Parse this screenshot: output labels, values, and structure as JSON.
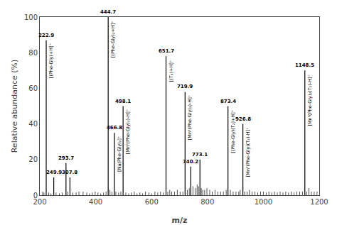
{
  "chart_data": {
    "type": "spectrum",
    "xlabel": "m/z",
    "ylabel": "Relative abundance (%)",
    "xlim": [
      200,
      1200
    ],
    "ylim": [
      0,
      100
    ],
    "xticks": [
      200,
      400,
      600,
      800,
      1000,
      1200
    ],
    "yticks": [
      0,
      20,
      40,
      60,
      80,
      100
    ],
    "grid": false,
    "color": "#000000",
    "series": [
      {
        "x": [
          222.9,
          249.9,
          293.7,
          307.8,
          444.7,
          466.8,
          498.1,
          651.7,
          719.9,
          740.2,
          773.1,
          873.4,
          926.8,
          1148.5
        ],
        "values": [
          87,
          10,
          18,
          10,
          100,
          35,
          50,
          78,
          58,
          16,
          20,
          50,
          40,
          70
        ],
        "labels": [
          "222.9",
          "249.9",
          "293.7",
          "307.8",
          "444.7",
          "466.8",
          "498.1",
          "651.7",
          "719.9",
          "740.2",
          "773.1",
          "873.4",
          "926.8",
          "1148.5"
        ],
        "annotations": [
          "[(Phe-Gly)+H]⁺",
          null,
          null,
          null,
          "[(Phe-Gly)₂+H]⁺",
          "[Na(Phe-Gly)₂]⁺",
          "[Mnᴵᴵ(Phe-Gly)₂)-H]⁺",
          "[(T₃)+H]⁺",
          "[Mnᴵᴵ(Phe-Gly)₃)-H]⁺",
          null,
          null,
          "[(Phe-Gly)(T₂)+H]⁺",
          "[Mnᴵᴵ(Phe-Gly)(T₂)-H]⁺",
          "[Mnᴵᴵ(Phe-Gly)₂(T₂)-H]⁺"
        ]
      },
      {
        "x": [
          210,
          215,
          232,
          240,
          258,
          270,
          280,
          300,
          318,
          330,
          340,
          355,
          368,
          378,
          388,
          398,
          408,
          418,
          428,
          437,
          451,
          458,
          472,
          482,
          490,
          508,
          518,
          528,
          538,
          548,
          558,
          568,
          578,
          590,
          600,
          612,
          622,
          632,
          642,
          658,
          665,
          672,
          682,
          692,
          702,
          712,
          728,
          735,
          748,
          757,
          763,
          768,
          778,
          783,
          790,
          798,
          808,
          817,
          827,
          837,
          847,
          857,
          867,
          882,
          892,
          902,
          912,
          917,
          933,
          942,
          950,
          960,
          970,
          980,
          990,
          1000,
          1010,
          1020,
          1030,
          1040,
          1050,
          1060,
          1070,
          1080,
          1090,
          1100,
          1110,
          1120,
          1130,
          1140,
          1155,
          1163,
          1172,
          1182,
          1192
        ],
        "values": [
          2,
          1.5,
          1.5,
          1,
          1.5,
          1,
          1.5,
          2,
          1.5,
          1.5,
          2,
          2,
          1.5,
          1,
          1.5,
          2,
          1.5,
          1,
          1.5,
          2,
          3,
          2,
          2,
          1.5,
          2,
          1.5,
          1,
          1.5,
          2,
          1,
          1.5,
          1,
          2,
          1.5,
          1,
          2,
          1.5,
          2,
          1.5,
          2,
          3,
          2,
          2,
          3,
          2,
          2,
          3,
          4,
          5,
          4,
          6,
          5,
          4,
          3,
          3,
          4,
          3,
          2,
          3,
          2,
          2,
          2,
          3,
          3,
          2,
          2,
          2,
          3,
          2,
          2,
          3,
          2,
          2,
          1.5,
          2,
          2,
          1.5,
          2,
          1.5,
          2,
          1.5,
          2,
          1.5,
          2,
          1.5,
          2,
          1.5,
          2,
          2,
          2,
          2,
          4,
          2,
          2,
          2
        ]
      }
    ]
  }
}
